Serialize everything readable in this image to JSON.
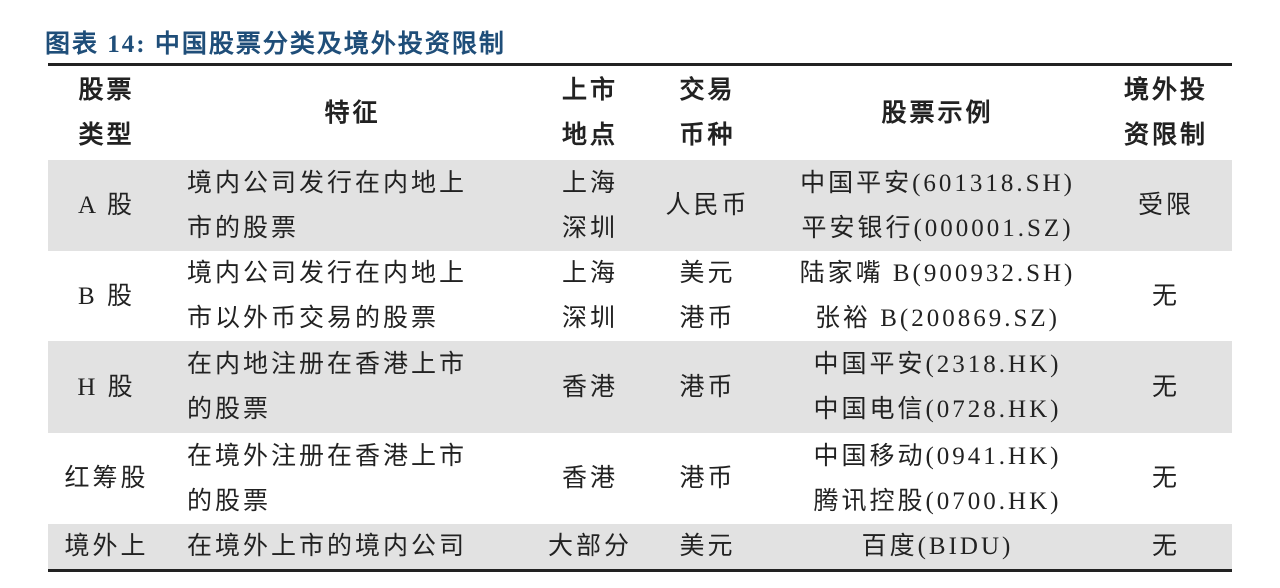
{
  "title": "图表 14: 中国股票分类及境外投资限制",
  "table": {
    "header": [
      [
        "股票",
        "类型"
      ],
      [
        "特征"
      ],
      [
        "上市",
        "地点"
      ],
      [
        "交易",
        "币种"
      ],
      [
        "股票示例"
      ],
      [
        "境外投",
        "资限制"
      ]
    ],
    "rows": [
      [
        [
          "A 股"
        ],
        [
          "境内公司发行在内地上",
          "市的股票"
        ],
        [
          "上海",
          "深圳"
        ],
        [
          "人民币"
        ],
        [
          "中国平安(601318.SH)",
          "平安银行(000001.SZ)"
        ],
        [
          "受限"
        ]
      ],
      [
        [
          "B 股"
        ],
        [
          "境内公司发行在内地上",
          "市以外币交易的股票"
        ],
        [
          "上海",
          "深圳"
        ],
        [
          "美元",
          "港币"
        ],
        [
          "陆家嘴 B(900932.SH)",
          "张裕 B(200869.SZ)"
        ],
        [
          "无"
        ]
      ],
      [
        [
          "H 股"
        ],
        [
          "在内地注册在香港上市",
          "的股票"
        ],
        [
          "香港"
        ],
        [
          "港币"
        ],
        [
          "中国平安(2318.HK)",
          "中国电信(0728.HK)"
        ],
        [
          "无"
        ]
      ],
      [
        [
          "红筹股"
        ],
        [
          "在境外注册在香港上市",
          "的股票"
        ],
        [
          "香港"
        ],
        [
          "港币"
        ],
        [
          "中国移动(0941.HK)",
          "腾讯控股(0700.HK)"
        ],
        [
          "无"
        ]
      ],
      [
        [
          "境外上"
        ],
        [
          "在境外上市的境内公司"
        ],
        [
          "大部分"
        ],
        [
          "美元"
        ],
        [
          "百度(BIDU)"
        ],
        [
          "无"
        ]
      ]
    ]
  }
}
